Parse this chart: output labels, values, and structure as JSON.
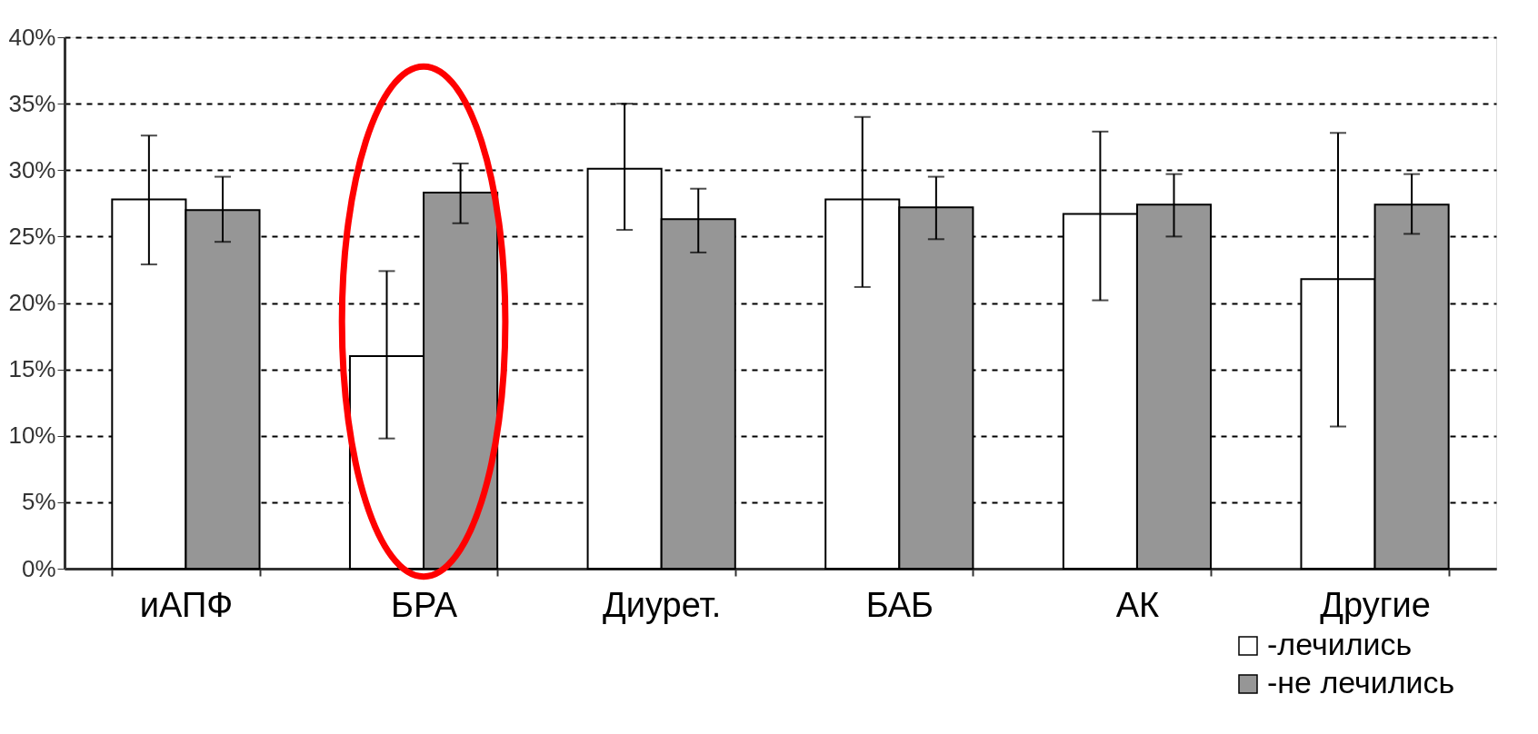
{
  "chart_data": {
    "type": "bar",
    "categories": [
      "иАПФ",
      "БРА",
      "Диурет.",
      "БАБ",
      "АК",
      "Другие"
    ],
    "series": [
      {
        "name": "-лечились",
        "color": "#ffffff",
        "values": [
          27.8,
          16.0,
          30.1,
          27.8,
          26.7,
          21.8
        ],
        "errors": [
          [
            22.9,
            32.6
          ],
          [
            9.8,
            22.4
          ],
          [
            25.5,
            35.0
          ],
          [
            21.2,
            34.0
          ],
          [
            20.2,
            32.9
          ],
          [
            10.7,
            32.8
          ]
        ]
      },
      {
        "name": "-не лечились",
        "color": "#969696",
        "values": [
          27.0,
          28.3,
          26.3,
          27.2,
          27.4,
          27.4
        ],
        "errors": [
          [
            24.6,
            29.5
          ],
          [
            26.0,
            30.5
          ],
          [
            23.8,
            28.6
          ],
          [
            24.8,
            29.5
          ],
          [
            25.0,
            29.7
          ],
          [
            25.2,
            29.7
          ]
        ]
      }
    ],
    "ylim": [
      0,
      40
    ],
    "yticks": [
      {
        "value": 0,
        "label": "0%"
      },
      {
        "value": 5,
        "label": "5%"
      },
      {
        "value": 10,
        "label": "10%"
      },
      {
        "value": 15,
        "label": "15%"
      },
      {
        "value": 20,
        "label": "20%"
      },
      {
        "value": 25,
        "label": "25%"
      },
      {
        "value": 30,
        "label": "30%"
      },
      {
        "value": 35,
        "label": "35%"
      },
      {
        "value": 40,
        "label": "40%"
      }
    ],
    "grid": "y",
    "line_style": "dashed",
    "legend": "bottom right"
  }
}
